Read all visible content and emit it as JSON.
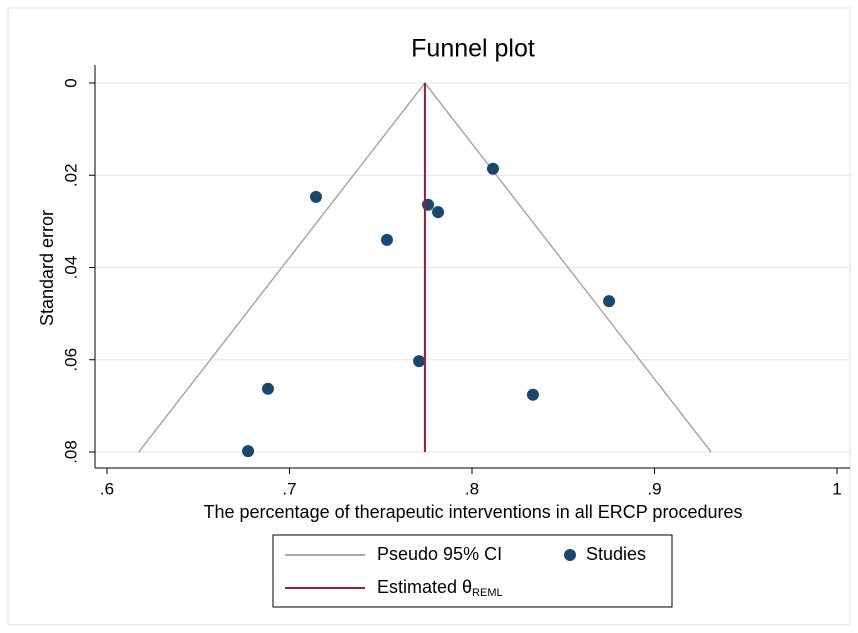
{
  "chart_data": {
    "type": "scatter",
    "title": "Funnel plot",
    "x_label": "The percentage of therapeutic interventions in all ERCP procedures",
    "y_label": "Standard error",
    "xlim": [
      0.6,
      1
    ],
    "xticks": [
      {
        "value": 0.6,
        "label": ".6"
      },
      {
        "value": 0.7,
        "label": ".7"
      },
      {
        "value": 0.8,
        "label": ".8"
      },
      {
        "value": 0.9,
        "label": ".9"
      },
      1
    ],
    "ylim": [
      0,
      0.08
    ],
    "y_reversed": true,
    "yticks": [
      0,
      {
        "value": 0.02,
        "label": ".02"
      },
      {
        "value": 0.04,
        "label": ".04"
      },
      {
        "value": 0.06,
        "label": ".06"
      },
      {
        "value": 0.08,
        "label": ".08"
      }
    ],
    "grid": true,
    "series": [
      {
        "name": "Pseudo 95% CI",
        "type": "line",
        "color": "#a8a8a8",
        "x": [
          0.6174,
          0.7742,
          0.931
        ],
        "values": [
          0.08,
          0,
          0.08
        ]
      },
      {
        "name": "Studies",
        "type": "scatter",
        "color": "#1a476f",
        "x": [
          0.7145,
          0.6773,
          0.6882,
          0.7534,
          0.771,
          0.7759,
          0.7814,
          0.8115,
          0.8334,
          0.8751
        ],
        "values": [
          0.0247,
          0.0798,
          0.0663,
          0.034,
          0.0603,
          0.0264,
          0.028,
          0.0186,
          0.0676,
          0.0473
        ]
      },
      {
        "name": "Estimated θ",
        "name_subscript": "REML",
        "type": "line",
        "color": "#9b1b3c",
        "x": [
          0.7742,
          0.7742
        ],
        "values": [
          0,
          0.08
        ]
      }
    ]
  }
}
